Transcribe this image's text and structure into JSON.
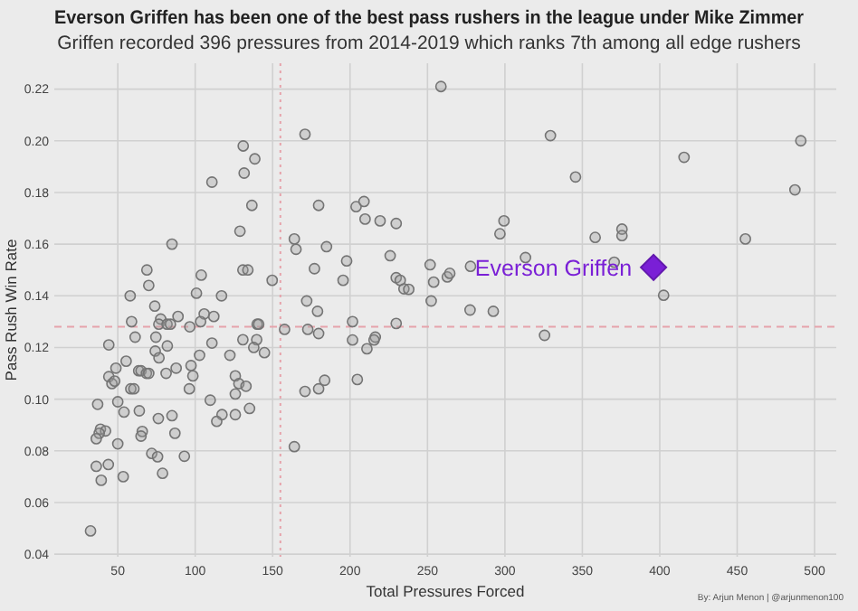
{
  "chart_data": {
    "type": "scatter",
    "title": "Everson Griffen has been one of the best pass rushers in the league under Mike Zimmer",
    "subtitle": "Griffen recorded 396 pressures from 2014-2019 which ranks 7th among all edge rushers",
    "xlabel": "Total Pressures Forced",
    "ylabel": "Pass Rush Win Rate",
    "annotations": [
      "By: Arjun Menon | @arjunmenon100"
    ],
    "xlim": [
      9,
      514
    ],
    "ylim": [
      0.039,
      0.23
    ],
    "xticks": [
      50,
      100,
      150,
      200,
      250,
      300,
      350,
      400,
      450,
      500
    ],
    "yticks": [
      {
        "value": 0.04,
        "label": "0.04"
      },
      {
        "value": 0.06,
        "label": "0.06"
      },
      {
        "value": 0.08,
        "label": "0.08"
      },
      {
        "value": 0.1,
        "label": "0.10"
      },
      {
        "value": 0.12,
        "label": "0.12"
      },
      {
        "value": 0.14,
        "label": "0.14"
      },
      {
        "value": 0.16,
        "label": "0.16"
      },
      {
        "value": 0.18,
        "label": "0.18"
      },
      {
        "value": 0.2,
        "label": "0.20"
      },
      {
        "value": 0.22,
        "label": "0.22"
      }
    ],
    "grid": true,
    "ref_lines": [
      {
        "axis": "x",
        "value": 155,
        "color": "#e6a3ab",
        "line_style": "dotted"
      },
      {
        "axis": "y",
        "value": 0.128,
        "color": "#e6a3ab",
        "line_style": "dashed"
      }
    ],
    "series": [
      {
        "color": "#9a9a9a",
        "marker": "circle",
        "x": [
          131,
          138.5,
          131.6,
          110.8,
          136.6,
          128.9,
          85,
          68.8,
          130.8,
          134,
          70,
          103.9,
          149.7,
          58,
          100.8,
          117,
          73.9,
          105.8,
          112,
          88.9,
          77.7,
          58.9,
          76.5,
          81.8,
          84,
          103.5,
          140,
          141,
          96.5,
          61.2,
          74.6,
          44.2,
          82,
          74.2,
          110.8,
          130.8,
          139.7,
          137.8,
          144.7,
          76.6,
          102.8,
          122.4,
          55.4,
          48.8,
          63.5,
          65,
          68.5,
          70,
          81.2,
          87.7,
          98.5,
          97.3,
          44.2,
          46.2,
          48,
          125.9,
          128.2,
          132.8,
          125.9,
          58.4,
          60.4,
          96.2,
          37,
          50,
          109.7,
          135.1,
          54,
          63.9,
          76.2,
          85,
          117.3,
          125.9,
          113.9,
          38.8,
          42.1,
          38,
          65.8,
          65,
          86.9,
          36.1,
          50,
          71.9,
          75.7,
          93,
          36.1,
          43.9,
          78.9,
          53.5,
          39.3,
          32.4,
          258.7,
          170.9,
          179.7,
          203.9,
          209,
          209.7,
          219.4,
          229.8,
          164,
          165.1,
          184.8,
          225.9,
          197.8,
          177,
          195.5,
          229.8,
          232.4,
          234.8,
          237.9,
          251.7,
          254,
          262.8,
          264.4,
          277.8,
          313.3,
          296.8,
          299.4,
          172,
          179,
          252.4,
          277.5,
          292.5,
          201.6,
          229.8,
          157.7,
          172.7,
          179.7,
          201.6,
          216.3,
          215.5,
          210.9,
          170.9,
          179.7,
          183.6,
          204.7,
          164,
          329.4,
          345.6,
          415.7,
          491.1,
          487.3,
          358.3,
          375.6,
          375.6,
          455.3,
          370.6,
          402.5,
          325.6
        ],
        "values": [
          0.198,
          0.193,
          0.1875,
          0.184,
          0.175,
          0.165,
          0.16,
          0.15,
          0.15,
          0.15,
          0.144,
          0.148,
          0.146,
          0.14,
          0.141,
          0.14,
          0.136,
          0.133,
          0.132,
          0.132,
          0.131,
          0.13,
          0.129,
          0.129,
          0.129,
          0.13,
          0.129,
          0.129,
          0.128,
          0.124,
          0.124,
          0.121,
          0.1206,
          0.1186,
          0.1217,
          0.123,
          0.123,
          0.12,
          0.118,
          0.116,
          0.117,
          0.117,
          0.1147,
          0.112,
          0.111,
          0.111,
          0.11,
          0.11,
          0.11,
          0.112,
          0.109,
          0.113,
          0.1087,
          0.106,
          0.107,
          0.109,
          0.106,
          0.105,
          0.102,
          0.104,
          0.104,
          0.104,
          0.098,
          0.099,
          0.0996,
          0.0964,
          0.095,
          0.0955,
          0.0925,
          0.0936,
          0.094,
          0.094,
          0.0914,
          0.0884,
          0.0877,
          0.0868,
          0.0875,
          0.0857,
          0.0868,
          0.0847,
          0.0827,
          0.079,
          0.0777,
          0.0779,
          0.074,
          0.0747,
          0.0713,
          0.07,
          0.0686,
          0.049,
          0.221,
          0.2025,
          0.175,
          0.1745,
          0.1765,
          0.1697,
          0.169,
          0.168,
          0.162,
          0.158,
          0.159,
          0.1555,
          0.1535,
          0.1505,
          0.146,
          0.147,
          0.146,
          0.1427,
          0.1425,
          0.152,
          0.1453,
          0.1473,
          0.1487,
          0.1514,
          0.1548,
          0.164,
          0.169,
          0.138,
          0.134,
          0.138,
          0.1345,
          0.134,
          0.13,
          0.1293,
          0.127,
          0.127,
          0.1254,
          0.1229,
          0.124,
          0.1229,
          0.1195,
          0.103,
          0.104,
          0.1073,
          0.1076,
          0.0816,
          0.202,
          0.186,
          0.1936,
          0.2,
          0.181,
          0.1626,
          0.1658,
          0.1633,
          0.162,
          0.153,
          0.1402,
          0.1247
        ]
      },
      {
        "name": "Everson Griffen",
        "color": "#7a1fd6",
        "marker": "diamond",
        "x": [
          396
        ],
        "values": [
          0.151
        ]
      }
    ]
  }
}
